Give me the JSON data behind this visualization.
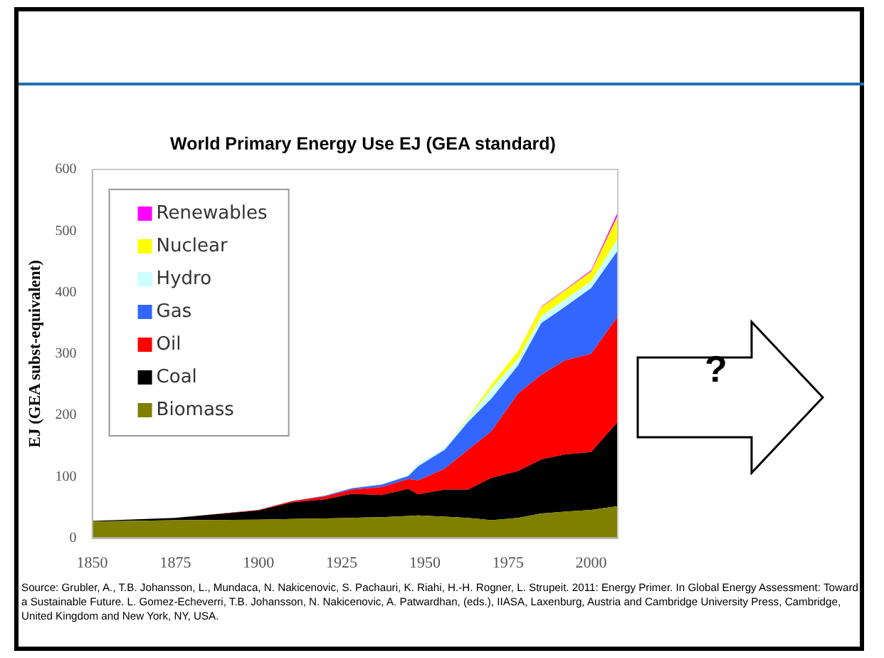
{
  "chart_data": {
    "type": "area",
    "stacked": true,
    "title": "World Primary Energy Use EJ (GEA standard)",
    "ylabel": "EJ (GEA subst-equivalent)",
    "x": [
      1850,
      1875,
      1900,
      1910,
      1920,
      1928,
      1937,
      1945,
      1948,
      1956,
      1963,
      1970,
      1978,
      1985,
      1992,
      2000,
      2008
    ],
    "xlim": [
      1850,
      2008
    ],
    "xticks": [
      1850,
      1875,
      1900,
      1925,
      1950,
      1975,
      2000
    ],
    "ylim": [
      0,
      600
    ],
    "yticks": [
      0,
      100,
      200,
      300,
      400,
      500,
      600
    ],
    "grid": false,
    "legend": "top left",
    "series": [
      {
        "name": "Biomass",
        "color": "#7f7f00",
        "values": [
          27,
          29,
          30,
          31,
          32,
          33,
          34,
          36,
          37,
          35,
          33,
          29,
          33,
          40,
          43,
          46,
          52
        ]
      },
      {
        "name": "Coal",
        "color": "#000000",
        "values": [
          1,
          4,
          15,
          27,
          31,
          39,
          36,
          44,
          34,
          44,
          46,
          69,
          76,
          88,
          93,
          94,
          137
        ]
      },
      {
        "name": "Oil",
        "color": "#ff0000",
        "values": [
          0,
          0,
          1,
          2,
          5,
          7,
          13,
          16,
          23,
          34,
          65,
          76,
          126,
          138,
          153,
          160,
          172
        ]
      },
      {
        "name": "Gas",
        "color": "#3366ff",
        "values": [
          0,
          0,
          0,
          0,
          1,
          2,
          4,
          5,
          23,
          31,
          45,
          53,
          46,
          84,
          87,
          107,
          107
        ]
      },
      {
        "name": "Hydro",
        "color": "#ccffff",
        "values": [
          0,
          0,
          0,
          0,
          0,
          1,
          1,
          2,
          4,
          3,
          6,
          16,
          11,
          11,
          12,
          11,
          19
        ]
      },
      {
        "name": "Nuclear",
        "color": "#ffff00",
        "values": [
          0,
          0,
          0,
          0,
          0,
          0,
          0,
          0,
          0,
          0,
          2,
          7,
          12,
          15,
          15,
          16,
          38
        ]
      },
      {
        "name": "Renewables",
        "color": "#ff00ff",
        "values": [
          0,
          0,
          0,
          0,
          0,
          0,
          0,
          0,
          0,
          0,
          0,
          0,
          0,
          1,
          1,
          2,
          6
        ]
      }
    ],
    "annotations": [
      "?",
      "Source: Grubler, A., T.B. Johansson, L., Mundaca, N. Nakicenovic, S. Pachauri, K. Riahi, H.-H. Rogner, L. Strupeit. 2011: Energy Primer. In Global Energy Assessment: Toward a Sustainable Future. L. Gomez-Echeverri, T.B. Johansson, N. Nakicenovic, A. Patwardhan, (eds.), IIASA, Laxenburg, Austria and Cambridge University Press, Cambridge, United Kingdom and New York, NY, USA."
    ]
  }
}
